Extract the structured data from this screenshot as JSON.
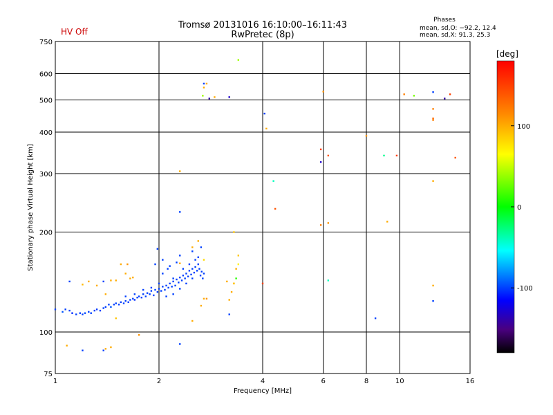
{
  "chart_data": {
    "type": "scatter",
    "title": "Tromsø 20131016 16:10:00–16:11:43",
    "subtitle": "RwPretec (8p)",
    "status": "HV Off",
    "xlabel": "Frequency [MHz]",
    "ylabel": "Stationary phase Virtual Height [km]",
    "x_scale": "log",
    "y_scale": "log",
    "xlim": [
      1,
      16
    ],
    "ylim": [
      75,
      750
    ],
    "xticks": [
      1,
      2,
      4,
      6,
      8,
      10,
      16
    ],
    "yticks": [
      75,
      100,
      200,
      300,
      400,
      500,
      600,
      750
    ],
    "gridlines_x": [
      2,
      4,
      6,
      8,
      10
    ],
    "gridlines_y": [
      100,
      200,
      300,
      400,
      500,
      600
    ],
    "stats": {
      "title": "Phases",
      "line1": "mean, sd,O: −92.2, 12.4",
      "line2": "mean, sd,X:  91.3, 25.3"
    },
    "colorbar": {
      "label": "[deg]",
      "min": -180,
      "max": 180,
      "ticks": [
        100,
        0,
        -100
      ]
    },
    "points": [
      [
        1.0,
        117,
        -100
      ],
      [
        1.05,
        115,
        -95
      ],
      [
        1.07,
        117,
        -100
      ],
      [
        1.1,
        116,
        -100
      ],
      [
        1.12,
        114,
        -105
      ],
      [
        1.15,
        113,
        -100
      ],
      [
        1.18,
        114,
        -100
      ],
      [
        1.2,
        113,
        -100
      ],
      [
        1.22,
        114,
        -98
      ],
      [
        1.25,
        115,
        -100
      ],
      [
        1.27,
        114,
        -100
      ],
      [
        1.3,
        116,
        -100
      ],
      [
        1.32,
        117,
        -102
      ],
      [
        1.35,
        116,
        -100
      ],
      [
        1.38,
        118,
        -100
      ],
      [
        1.4,
        119,
        -100
      ],
      [
        1.43,
        121,
        -100
      ],
      [
        1.45,
        119,
        -95
      ],
      [
        1.48,
        121,
        -100
      ],
      [
        1.5,
        122,
        -100
      ],
      [
        1.53,
        121,
        -100
      ],
      [
        1.55,
        123,
        -100
      ],
      [
        1.58,
        122,
        -100
      ],
      [
        1.6,
        124,
        -100
      ],
      [
        1.63,
        123,
        -100
      ],
      [
        1.65,
        125,
        -100
      ],
      [
        1.68,
        126,
        -100
      ],
      [
        1.7,
        125,
        -105
      ],
      [
        1.73,
        127,
        -100
      ],
      [
        1.75,
        128,
        -100
      ],
      [
        1.78,
        127,
        -100
      ],
      [
        1.8,
        130,
        -100
      ],
      [
        1.83,
        128,
        -100
      ],
      [
        1.85,
        131,
        -100
      ],
      [
        1.88,
        130,
        -100
      ],
      [
        1.9,
        133,
        -100
      ],
      [
        1.93,
        129,
        -100
      ],
      [
        1.95,
        134,
        -100
      ],
      [
        1.98,
        132,
        -100
      ],
      [
        2.0,
        135,
        -100
      ],
      [
        2.03,
        133,
        -100
      ],
      [
        2.05,
        137,
        -100
      ],
      [
        2.08,
        134,
        -100
      ],
      [
        2.1,
        138,
        -100
      ],
      [
        2.13,
        136,
        -100
      ],
      [
        2.15,
        140,
        -100
      ],
      [
        2.18,
        137,
        -100
      ],
      [
        2.2,
        142,
        -100
      ],
      [
        2.23,
        138,
        -100
      ],
      [
        2.25,
        144,
        -100
      ],
      [
        2.28,
        141,
        -100
      ],
      [
        2.3,
        146,
        -100
      ],
      [
        2.33,
        143,
        -100
      ],
      [
        2.35,
        148,
        -100
      ],
      [
        2.38,
        145,
        -100
      ],
      [
        2.4,
        150,
        -100
      ],
      [
        2.43,
        147,
        -100
      ],
      [
        2.45,
        153,
        -100
      ],
      [
        2.48,
        149,
        -100
      ],
      [
        2.5,
        155,
        -100
      ],
      [
        2.53,
        151,
        -100
      ],
      [
        2.55,
        157,
        -100
      ],
      [
        2.58,
        153,
        -100
      ],
      [
        2.6,
        160,
        -100
      ],
      [
        2.62,
        155,
        -100
      ],
      [
        2.64,
        148,
        -100
      ],
      [
        2.66,
        152,
        -100
      ],
      [
        2.68,
        145,
        -100
      ],
      [
        2.7,
        150,
        -100
      ],
      [
        1.6,
        128,
        -100
      ],
      [
        1.7,
        130,
        -100
      ],
      [
        1.8,
        134,
        -100
      ],
      [
        1.9,
        136,
        -100
      ],
      [
        2.0,
        140,
        -100
      ],
      [
        2.1,
        128,
        -100
      ],
      [
        2.2,
        130,
        -100
      ],
      [
        2.3,
        135,
        -100
      ],
      [
        2.4,
        140,
        -100
      ],
      [
        2.5,
        145,
        -100
      ],
      [
        1.95,
        160,
        -100
      ],
      [
        2.05,
        165,
        -100
      ],
      [
        2.15,
        158,
        -100
      ],
      [
        2.25,
        162,
        -100
      ],
      [
        2.35,
        155,
        -100
      ],
      [
        1.98,
        178,
        -100
      ],
      [
        2.3,
        170,
        -100
      ],
      [
        2.5,
        175,
        -100
      ],
      [
        2.6,
        168,
        -100
      ],
      [
        2.65,
        180,
        -100
      ],
      [
        2.55,
        165,
        -100
      ],
      [
        2.45,
        160,
        -100
      ],
      [
        2.05,
        150,
        -100
      ],
      [
        2.12,
        155,
        -100
      ],
      [
        2.2,
        145,
        -100
      ],
      [
        1.38,
        142,
        -100
      ],
      [
        1.1,
        142,
        -100
      ],
      [
        1.2,
        139,
        95
      ],
      [
        1.08,
        91,
        100
      ],
      [
        1.2,
        88,
        -100
      ],
      [
        1.38,
        88,
        -100
      ],
      [
        1.45,
        90,
        100
      ],
      [
        1.4,
        89,
        100
      ],
      [
        1.5,
        143,
        100
      ],
      [
        1.45,
        143,
        100
      ],
      [
        1.6,
        150,
        100
      ],
      [
        1.55,
        160,
        100
      ],
      [
        1.4,
        130,
        100
      ],
      [
        1.68,
        146,
        100
      ],
      [
        1.5,
        110,
        90
      ],
      [
        1.75,
        98,
        110
      ],
      [
        1.65,
        145,
        100
      ],
      [
        1.25,
        142,
        100
      ],
      [
        1.32,
        138,
        100
      ],
      [
        1.62,
        160,
        110
      ],
      [
        2.3,
        92,
        -100
      ],
      [
        2.6,
        188,
        100
      ],
      [
        2.7,
        126,
        100
      ],
      [
        2.75,
        126,
        110
      ],
      [
        2.5,
        108,
        100
      ],
      [
        2.65,
        120,
        100
      ],
      [
        2.3,
        305,
        100
      ],
      [
        2.3,
        230,
        -100
      ],
      [
        2.3,
        161,
        100
      ],
      [
        2.5,
        180,
        100
      ],
      [
        2.7,
        165,
        80
      ],
      [
        2.7,
        560,
        -100
      ],
      [
        2.7,
        545,
        100
      ],
      [
        2.75,
        560,
        100
      ],
      [
        2.68,
        515,
        40
      ],
      [
        2.8,
        505,
        -140
      ],
      [
        2.9,
        510,
        100
      ],
      [
        3.2,
        510,
        -130
      ],
      [
        3.4,
        660,
        40
      ],
      [
        3.3,
        200,
        90
      ],
      [
        3.4,
        170,
        90
      ],
      [
        3.4,
        160,
        70
      ],
      [
        3.35,
        155,
        100
      ],
      [
        3.35,
        145,
        10
      ],
      [
        3.3,
        140,
        100
      ],
      [
        3.25,
        132,
        100
      ],
      [
        3.15,
        142,
        100
      ],
      [
        3.2,
        125,
        100
      ],
      [
        3.2,
        113,
        -100
      ],
      [
        3.3,
        140,
        90
      ],
      [
        4.05,
        455,
        -100
      ],
      [
        4.1,
        410,
        100
      ],
      [
        4.3,
        285,
        -40
      ],
      [
        4.35,
        235,
        140
      ],
      [
        4.0,
        140,
        150
      ],
      [
        5.9,
        355,
        150
      ],
      [
        5.9,
        325,
        -130
      ],
      [
        5.9,
        210,
        120
      ],
      [
        6.0,
        530,
        110
      ],
      [
        6.2,
        340,
        140
      ],
      [
        6.2,
        213,
        110
      ],
      [
        6.2,
        143,
        -40
      ],
      [
        8.0,
        390,
        110
      ],
      [
        8.5,
        110,
        -100
      ],
      [
        9.0,
        340,
        -30
      ],
      [
        9.2,
        215,
        100
      ],
      [
        9.8,
        340,
        150
      ],
      [
        10.3,
        520,
        120
      ],
      [
        11.0,
        515,
        30
      ],
      [
        12.5,
        528,
        -100
      ],
      [
        12.5,
        470,
        120
      ],
      [
        12.5,
        440,
        130
      ],
      [
        12.5,
        435,
        120
      ],
      [
        12.5,
        285,
        100
      ],
      [
        12.5,
        138,
        100
      ],
      [
        12.5,
        124,
        -100
      ],
      [
        13.5,
        505,
        -140
      ],
      [
        14.0,
        520,
        150
      ],
      [
        14.5,
        335,
        140
      ]
    ]
  }
}
